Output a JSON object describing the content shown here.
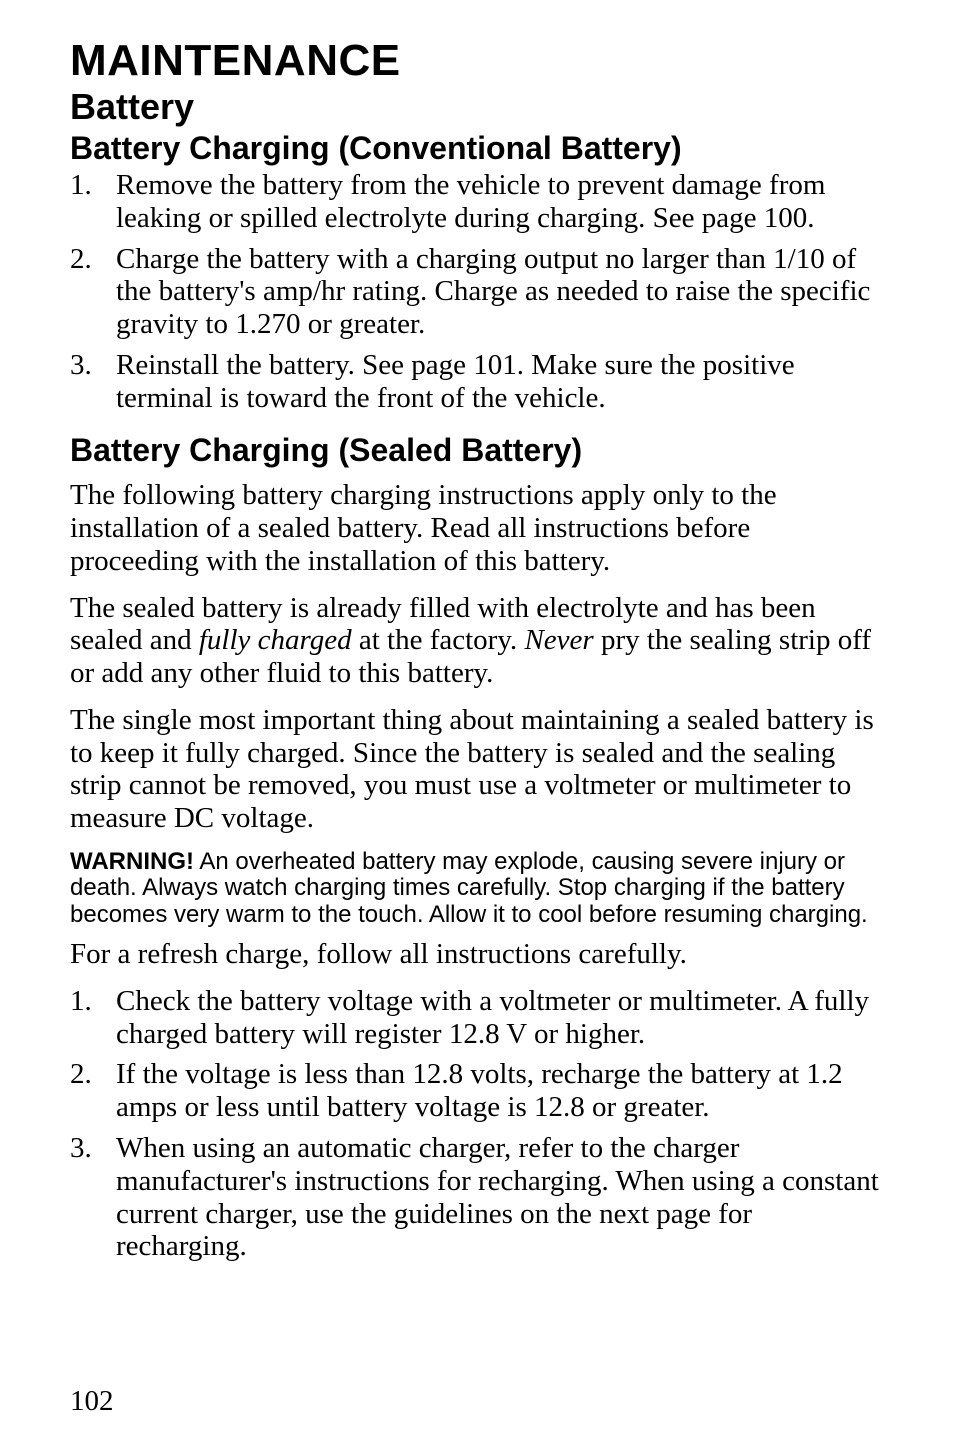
{
  "title": "MAINTENANCE",
  "subtitle": "Battery",
  "section1": {
    "heading": "Battery Charging (Conventional Battery)",
    "items": [
      "Remove the battery from the vehicle to prevent damage from leaking or spilled electrolyte during charging. See page 100.",
      "Charge the battery with a charging output no larger than 1/10 of the battery's amp/hr rating. Charge as needed to raise the specific gravity to 1.270 or greater.",
      "Reinstall the battery. See page 101. Make sure the positive terminal is toward the front of the vehicle."
    ]
  },
  "section2": {
    "heading": "Battery Charging (Sealed Battery)",
    "p1": "The following battery charging instructions apply only to the installation of a sealed battery. Read all instructions before proceeding with the installation of this battery.",
    "p2_pre": "The sealed battery is already filled with electrolyte and has been sealed and ",
    "p2_i1": "fully charged",
    "p2_mid": " at the factory. ",
    "p2_i2": "Never",
    "p2_post": " pry the sealing strip off or add any other fluid to this battery.",
    "p3": "The single most important thing about maintaining a sealed battery is to keep it fully charged. Since the battery is sealed and the sealing strip cannot be removed, you must use a voltmeter or multimeter to measure DC voltage.",
    "warning_label": "WARNING!",
    "warning_text": " An overheated battery may explode, causing severe injury or death. Always watch charging times carefully. Stop charging if the battery becomes very warm to the touch. Allow it to cool before resuming charging.",
    "p4": "For a refresh charge, follow all instructions carefully.",
    "items": [
      "Check the battery voltage with a voltmeter or multimeter. A fully charged battery will register 12.8 V or higher.",
      "If the voltage is less than 12.8 volts, recharge the battery at 1.2 amps or less until battery voltage is 12.8 or greater.",
      "When using an automatic charger, refer to the charger manufacturer's instructions for recharging. When using a constant current charger, use the guidelines on the next page for recharging."
    ]
  },
  "page_number": "102"
}
